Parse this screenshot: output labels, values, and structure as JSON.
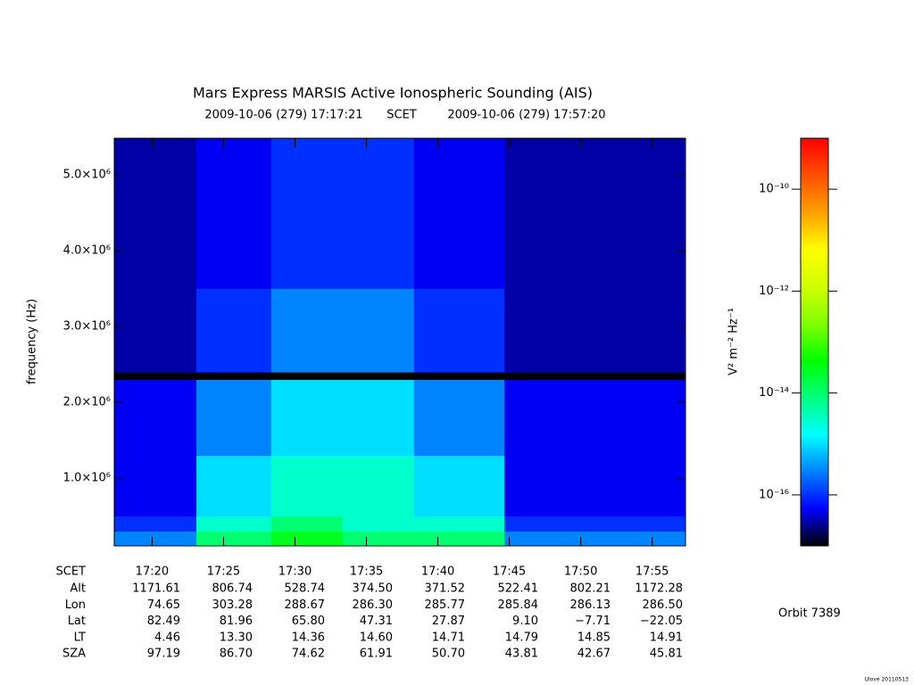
{
  "chart_data": {
    "type": "heatmap",
    "title": "Mars Express MARSIS Active Ionospheric Sounding (AIS)",
    "subtitle": {
      "start": "2009-10-06 (279) 17:17:21",
      "middle": "SCET",
      "end": "2009-10-06 (279) 17:57:20"
    },
    "y_label": "frequency (Hz)",
    "colorbar_label": "V² m⁻² Hz⁻¹",
    "xlim": [
      1041,
      3440
    ],
    "xticks": [
      {
        "value": 1200,
        "label": "17:20"
      },
      {
        "value": 1500,
        "label": "17:25"
      },
      {
        "value": 1800,
        "label": "17:30"
      },
      {
        "value": 2100,
        "label": "17:35"
      },
      {
        "value": 2400,
        "label": "17:40"
      },
      {
        "value": 2700,
        "label": "17:45"
      },
      {
        "value": 3000,
        "label": "17:50"
      },
      {
        "value": 3300,
        "label": "17:55"
      }
    ],
    "ylim": [
      106000,
      5480000
    ],
    "yticks": [
      {
        "value": 1000000,
        "label": "1.0×10⁶"
      },
      {
        "value": 2000000,
        "label": "2.0×10⁶"
      },
      {
        "value": 3000000,
        "label": "3.0×10⁶"
      },
      {
        "value": 4000000,
        "label": "4.0×10⁶"
      },
      {
        "value": 5000000,
        "label": "5.0×10⁶"
      }
    ],
    "clim": [
      1e-17,
      1e-09
    ],
    "clog": true,
    "cticks": [
      {
        "value": 1e-16,
        "label": "10⁻¹⁶"
      },
      {
        "value": 1e-14,
        "label": "10⁻¹⁴"
      },
      {
        "value": 1e-12,
        "label": "10⁻¹²"
      },
      {
        "value": 1e-10,
        "label": "10⁻¹⁰"
      }
    ],
    "colormap": [
      "#000000",
      "#0000ff",
      "#0080ff",
      "#00ffff",
      "#00ff80",
      "#00ff00",
      "#80ff00",
      "#d0ff00",
      "#ffff00",
      "#ffa000",
      "#ff5000",
      "#ff0000"
    ],
    "x_edges": [
      1041,
      1386,
      1700,
      2000,
      2300,
      2679,
      3440
    ],
    "y_edges": [
      106000,
      300000,
      500000,
      1000000,
      1300000,
      2300000,
      2400000,
      3500000,
      5480000
    ],
    "z": [
      [
        3e-16,
        1e-14,
        3e-14,
        1e-14,
        1e-14,
        3e-16
      ],
      [
        1e-16,
        3e-15,
        1e-14,
        3e-15,
        3e-15,
        1e-16
      ],
      [
        5e-17,
        1e-15,
        3e-15,
        3e-15,
        1e-15,
        5e-17
      ],
      [
        5e-17,
        1e-15,
        3e-15,
        3e-15,
        1e-15,
        5e-17
      ],
      [
        5e-17,
        3e-16,
        1e-15,
        1e-15,
        3e-16,
        5e-17
      ],
      [
        1e-17,
        1e-17,
        1e-17,
        1e-17,
        1e-17,
        1e-17
      ],
      [
        3e-17,
        1e-16,
        3e-16,
        3e-16,
        1e-16,
        3e-17
      ],
      [
        3e-17,
        5e-17,
        1e-16,
        1e-16,
        5e-17,
        3e-17
      ]
    ],
    "ephemeris": {
      "time_label": "SCET",
      "rows": [
        {
          "label": "Alt",
          "cells": [
            "1171.61",
            "806.74",
            "528.74",
            "374.50",
            "371.52",
            "522.41",
            "802.21",
            "1172.28"
          ]
        },
        {
          "label": "Lon",
          "cells": [
            "74.65",
            "303.28",
            "288.67",
            "286.30",
            "285.77",
            "285.84",
            "286.13",
            "286.50"
          ]
        },
        {
          "label": "Lat",
          "cells": [
            "82.49",
            "81.96",
            "65.80",
            "47.31",
            "27.87",
            "9.10",
            "−7.71",
            "−22.05"
          ]
        },
        {
          "label": "LT",
          "cells": [
            "4.46",
            "13.30",
            "14.36",
            "14.60",
            "14.71",
            "14.79",
            "14.85",
            "14.91"
          ]
        },
        {
          "label": "SZA",
          "cells": [
            "97.19",
            "86.70",
            "74.62",
            "61.91",
            "50.70",
            "43.81",
            "42.67",
            "45.81"
          ]
        }
      ]
    },
    "orbit": "Orbit 7389",
    "credit": "Ulove 20110513"
  }
}
